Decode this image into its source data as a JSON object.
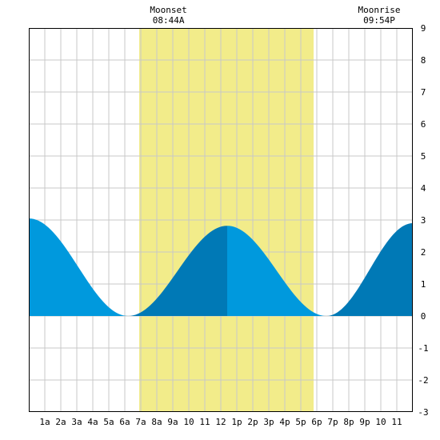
{
  "chart_data": {
    "type": "area",
    "xlabel": "",
    "ylabel": "",
    "xlim": [
      0,
      24
    ],
    "ylim": [
      -3,
      9
    ],
    "grid": true,
    "x_ticks": [
      {
        "x": 1,
        "label": "1a"
      },
      {
        "x": 2,
        "label": "2a"
      },
      {
        "x": 3,
        "label": "3a"
      },
      {
        "x": 4,
        "label": "4a"
      },
      {
        "x": 5,
        "label": "5a"
      },
      {
        "x": 6,
        "label": "6a"
      },
      {
        "x": 7,
        "label": "7a"
      },
      {
        "x": 8,
        "label": "8a"
      },
      {
        "x": 9,
        "label": "9a"
      },
      {
        "x": 10,
        "label": "10"
      },
      {
        "x": 11,
        "label": "11"
      },
      {
        "x": 12,
        "label": "12"
      },
      {
        "x": 13,
        "label": "1p"
      },
      {
        "x": 14,
        "label": "2p"
      },
      {
        "x": 15,
        "label": "3p"
      },
      {
        "x": 16,
        "label": "4p"
      },
      {
        "x": 17,
        "label": "5p"
      },
      {
        "x": 18,
        "label": "6p"
      },
      {
        "x": 19,
        "label": "7p"
      },
      {
        "x": 20,
        "label": "8p"
      },
      {
        "x": 21,
        "label": "9p"
      },
      {
        "x": 22,
        "label": "10"
      },
      {
        "x": 23,
        "label": "11"
      }
    ],
    "y_ticks": [
      9,
      8,
      7,
      6,
      5,
      4,
      3,
      2,
      1,
      0,
      -1,
      -2,
      -3
    ],
    "daylight": {
      "start": 6.9,
      "end": 17.8
    },
    "events": [
      {
        "name": "Moonset",
        "time": "08:44A",
        "x": 8.73
      },
      {
        "name": "Moonrise",
        "time": "09:54P",
        "x": 21.9
      }
    ],
    "tide_extremes": [
      {
        "x": 0.0,
        "y": 3.05
      },
      {
        "x": 6.2,
        "y": 0.0
      },
      {
        "x": 12.4,
        "y": 2.82
      },
      {
        "x": 18.6,
        "y": 0.0
      },
      {
        "x": 24.0,
        "y": 2.9
      }
    ],
    "colors": {
      "rising": "#0079b6",
      "falling": "#0099dd",
      "daylight": "#f2ec8a",
      "grid": "#c8c8c8",
      "border": "#000000"
    }
  }
}
